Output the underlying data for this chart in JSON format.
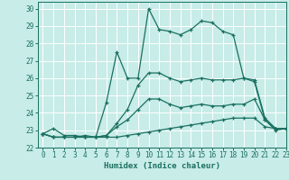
{
  "xlabel": "Humidex (Indice chaleur)",
  "bg_color": "#c8ece8",
  "grid_color": "#ffffff",
  "line_color": "#1a7060",
  "xlim": [
    -0.5,
    23
  ],
  "ylim": [
    22,
    30.4
  ],
  "yticks": [
    22,
    23,
    24,
    25,
    26,
    27,
    28,
    29,
    30
  ],
  "xticks": [
    0,
    1,
    2,
    3,
    4,
    5,
    6,
    7,
    8,
    9,
    10,
    11,
    12,
    13,
    14,
    15,
    16,
    17,
    18,
    19,
    20,
    21,
    22,
    23
  ],
  "series": [
    [
      22.8,
      22.6,
      22.6,
      22.6,
      22.6,
      22.6,
      22.6,
      22.6,
      22.7,
      22.8,
      22.9,
      23.0,
      23.1,
      23.2,
      23.3,
      23.4,
      23.5,
      23.6,
      23.7,
      23.7,
      23.7,
      23.2,
      23.1,
      23.1
    ],
    [
      22.8,
      22.6,
      22.6,
      22.6,
      22.6,
      22.6,
      22.7,
      23.2,
      23.6,
      24.2,
      24.8,
      24.8,
      24.5,
      24.3,
      24.4,
      24.5,
      24.4,
      24.4,
      24.5,
      24.5,
      24.8,
      23.6,
      23.0,
      23.1
    ],
    [
      22.8,
      22.6,
      22.6,
      22.6,
      22.7,
      22.6,
      22.7,
      23.4,
      24.2,
      25.6,
      26.3,
      26.3,
      26.0,
      25.8,
      25.9,
      26.0,
      25.9,
      25.9,
      25.9,
      26.0,
      25.9,
      23.7,
      23.1,
      23.1
    ],
    [
      22.8,
      23.1,
      22.7,
      22.7,
      22.6,
      22.6,
      24.6,
      27.5,
      26.0,
      26.0,
      30.0,
      28.8,
      28.7,
      28.5,
      28.8,
      29.3,
      29.2,
      28.7,
      28.5,
      26.0,
      25.8,
      23.6,
      23.1,
      23.1
    ]
  ]
}
